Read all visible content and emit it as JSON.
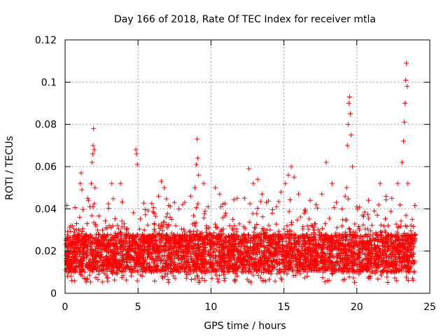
{
  "chart_data": {
    "type": "scatter",
    "title": "Day 166 of 2018, Rate Of TEC Index for receiver mtla",
    "xlabel": "GPS time / hours",
    "ylabel": "ROTI / TECUs",
    "xlim": [
      0,
      25
    ],
    "ylim": [
      0,
      0.12
    ],
    "x_ticks": [
      0,
      5,
      10,
      15,
      20,
      25
    ],
    "x_tick_labels": [
      "0",
      "5",
      "10",
      "15",
      "20",
      "25"
    ],
    "y_ticks": [
      0,
      0.02,
      0.04,
      0.06,
      0.08,
      0.1,
      0.12
    ],
    "y_tick_labels": [
      "0",
      "0.02",
      "0.04",
      "0.06",
      "0.08",
      "0.1",
      "0.12"
    ],
    "grid": true,
    "marker": "plus",
    "color": "#ff0000",
    "series": [
      {
        "name": "ROTI",
        "points": [
          [
            0.3,
            0.016
          ],
          [
            0.5,
            0.022
          ],
          [
            0.8,
            0.03
          ],
          [
            1.0,
            0.036
          ],
          [
            1.05,
            0.052
          ],
          [
            1.1,
            0.057
          ],
          [
            1.15,
            0.049
          ],
          [
            1.3,
            0.024
          ],
          [
            1.5,
            0.033
          ],
          [
            1.6,
            0.044
          ],
          [
            1.7,
            0.041
          ],
          [
            1.8,
            0.052
          ],
          [
            1.85,
            0.062
          ],
          [
            1.9,
            0.066
          ],
          [
            1.92,
            0.07
          ],
          [
            1.95,
            0.078
          ],
          [
            2.0,
            0.068
          ],
          [
            2.05,
            0.05
          ],
          [
            2.3,
            0.028
          ],
          [
            2.8,
            0.031
          ],
          [
            3.2,
            0.052
          ],
          [
            3.8,
            0.052
          ],
          [
            4.2,
            0.026
          ],
          [
            4.6,
            0.021
          ],
          [
            4.85,
            0.068
          ],
          [
            4.9,
            0.066
          ],
          [
            4.95,
            0.061
          ],
          [
            5.3,
            0.028
          ],
          [
            6.1,
            0.038
          ],
          [
            6.4,
            0.046
          ],
          [
            6.6,
            0.053
          ],
          [
            6.8,
            0.05
          ],
          [
            7.2,
            0.036
          ],
          [
            7.5,
            0.043
          ],
          [
            7.8,
            0.04
          ],
          [
            8.2,
            0.043
          ],
          [
            8.6,
            0.046
          ],
          [
            8.9,
            0.05
          ],
          [
            9.0,
            0.061
          ],
          [
            9.05,
            0.073
          ],
          [
            9.1,
            0.064
          ],
          [
            9.15,
            0.056
          ],
          [
            9.5,
            0.052
          ],
          [
            9.8,
            0.041
          ],
          [
            10.3,
            0.05
          ],
          [
            10.6,
            0.047
          ],
          [
            11.0,
            0.038
          ],
          [
            11.5,
            0.035
          ],
          [
            11.8,
            0.045
          ],
          [
            12.3,
            0.045
          ],
          [
            12.6,
            0.059
          ],
          [
            12.9,
            0.052
          ],
          [
            13.2,
            0.054
          ],
          [
            13.5,
            0.047
          ],
          [
            13.8,
            0.043
          ],
          [
            14.2,
            0.038
          ],
          [
            14.5,
            0.041
          ],
          [
            14.8,
            0.048
          ],
          [
            15.1,
            0.052
          ],
          [
            15.3,
            0.056
          ],
          [
            15.5,
            0.06
          ],
          [
            15.7,
            0.055
          ],
          [
            16.0,
            0.047
          ],
          [
            16.4,
            0.038
          ],
          [
            16.8,
            0.044
          ],
          [
            17.2,
            0.042
          ],
          [
            17.6,
            0.047
          ],
          [
            17.9,
            0.062
          ],
          [
            18.3,
            0.052
          ],
          [
            18.6,
            0.043
          ],
          [
            19.0,
            0.04
          ],
          [
            19.2,
            0.046
          ],
          [
            19.3,
            0.05
          ],
          [
            19.35,
            0.07
          ],
          [
            19.4,
            0.08
          ],
          [
            19.45,
            0.09
          ],
          [
            19.5,
            0.093
          ],
          [
            19.55,
            0.085
          ],
          [
            19.6,
            0.075
          ],
          [
            19.7,
            0.06
          ],
          [
            20.0,
            0.041
          ],
          [
            20.4,
            0.037
          ],
          [
            20.8,
            0.044
          ],
          [
            21.2,
            0.039
          ],
          [
            21.6,
            0.052
          ],
          [
            22.0,
            0.046
          ],
          [
            22.4,
            0.045
          ],
          [
            22.8,
            0.052
          ],
          [
            23.1,
            0.062
          ],
          [
            23.2,
            0.072
          ],
          [
            23.25,
            0.081
          ],
          [
            23.3,
            0.09
          ],
          [
            23.35,
            0.101
          ],
          [
            23.4,
            0.109
          ],
          [
            23.45,
            0.098
          ],
          [
            23.5,
            0.052
          ],
          [
            23.8,
            0.035
          ],
          [
            24.0,
            0.028
          ]
        ]
      }
    ]
  }
}
